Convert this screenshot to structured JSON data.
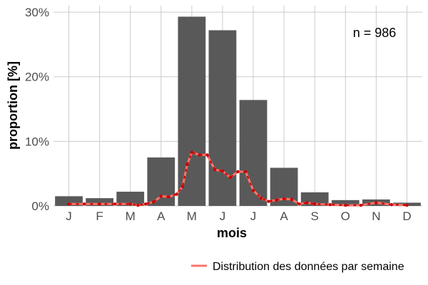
{
  "chart_data": {
    "type": "bar",
    "categories": [
      "J",
      "F",
      "M",
      "A",
      "M",
      "J",
      "J",
      "A",
      "S",
      "O",
      "N",
      "D"
    ],
    "series": [
      {
        "type": "bar",
        "values": [
          1.5,
          1.2,
          2.2,
          7.5,
          29.3,
          27.2,
          16.4,
          5.9,
          2.1,
          0.9,
          1.0,
          0.5
        ]
      },
      {
        "type": "line",
        "name": "Distribution des données par semaine",
        "x": [
          1,
          1.5,
          2,
          2.5,
          3,
          3.25,
          3.5,
          3.75,
          4,
          4.25,
          4.5,
          4.7,
          4.85,
          5.0,
          5.25,
          5.5,
          5.75,
          6.0,
          6.25,
          6.5,
          6.75,
          7.0,
          7.25,
          7.5,
          7.75,
          8.0,
          8.25,
          8.5,
          8.75,
          9,
          9.5,
          10,
          10.5,
          11,
          11.5,
          12
        ],
        "values": [
          0.3,
          0.3,
          0.3,
          0.3,
          0.3,
          0.1,
          0.3,
          0.6,
          1.5,
          1.4,
          1.8,
          3.0,
          6.4,
          8.3,
          7.9,
          7.9,
          5.6,
          5.4,
          4.4,
          5.3,
          5.3,
          2.4,
          1.2,
          0.7,
          0.9,
          1.1,
          1.0,
          0.3,
          0.5,
          0.3,
          0.2,
          0.1,
          0.1,
          0.5,
          0.2,
          0.1
        ]
      }
    ],
    "xlabel": "mois",
    "ylabel": "proportion [%]",
    "ylim": [
      0,
      31
    ],
    "yticks": [
      0,
      10,
      20,
      30
    ],
    "ytick_labels": [
      "0%",
      "10%",
      "20%",
      "30%"
    ],
    "grid": true,
    "legend_position": "bottom-right",
    "annotation": "n = 986",
    "colors": {
      "bar": "#595959",
      "line": "#f8766d",
      "point": "#cc0000",
      "dash": "#cc0000",
      "grid": "#cccccc"
    }
  }
}
